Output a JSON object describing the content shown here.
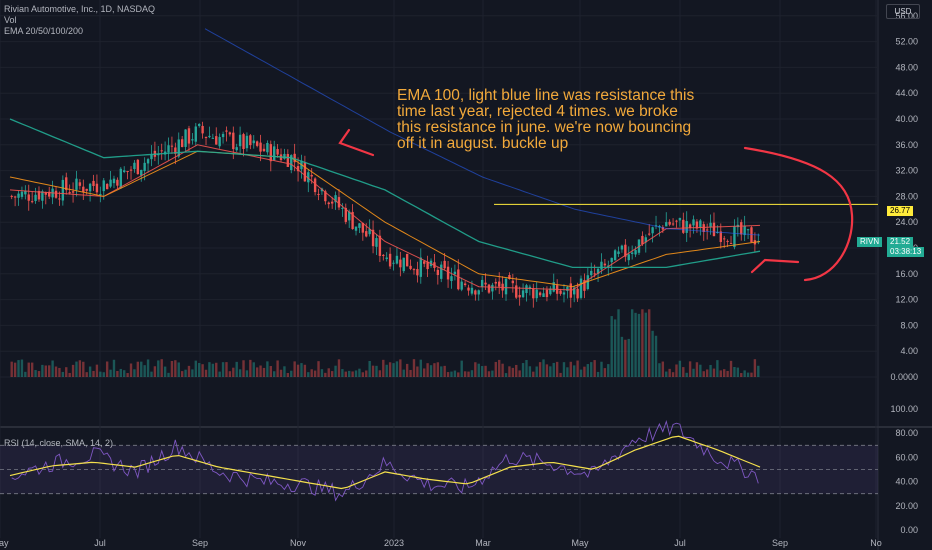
{
  "header": {
    "title": "Rivian Automotive, Inc., 1D, NASDAQ",
    "vol_label": "Vol",
    "ema_label": "EMA 20/50/100/200",
    "currency": "USD"
  },
  "annotation": {
    "text": "EMA 100, light blue line was resistance this time last year, rejected 4 times. we broke this resistance in june. we're now bouncing off it in august. buckle up"
  },
  "tags": {
    "ticker": "RIVN",
    "last_price": "21.52",
    "countdown": "03:38:13",
    "line_price": "26.77"
  },
  "rsi_label": "RSI (14, close, SMA, 14, 2)",
  "colors": {
    "background": "#131722",
    "up": "#26a69a",
    "down": "#ef5350",
    "ema20": "#ef5350",
    "ema50": "#f7931a",
    "ema100": "#22ab94",
    "ema200": "#2962ff",
    "hline": "#ffeb3b",
    "annotation": "#f2a93b",
    "rsi": "#7e57c2",
    "rsi_ma": "#f4e04d"
  },
  "chart_data": [
    {
      "type": "line",
      "title": "Rivian Automotive, Inc., 1D, NASDAQ",
      "x_ticks": [
        "May",
        "Jul",
        "Sep",
        "Nov",
        "2023",
        "Mar",
        "May",
        "Jul",
        "Sep",
        "No"
      ],
      "y_ticks": [
        "56.00",
        "52.00",
        "48.00",
        "44.00",
        "40.00",
        "36.00",
        "32.00",
        "28.00",
        "24.00",
        "20.00",
        "16.00",
        "12.00",
        "8.00",
        "4.00",
        "0.0000"
      ],
      "ylim": [
        -2,
        58
      ],
      "series": [
        {
          "name": "Close",
          "x": [
            "May",
            "Jul",
            "Sep",
            "Nov",
            "2023",
            "Mar",
            "May",
            "Jul",
            "Aug"
          ],
          "values": [
            28,
            30,
            38,
            34,
            19,
            14,
            13,
            24,
            21.52
          ]
        },
        {
          "name": "EMA 20",
          "x": [
            "May",
            "Jul",
            "Sep",
            "Nov",
            "2023",
            "Mar",
            "May",
            "Jul",
            "Aug"
          ],
          "values": [
            29,
            28,
            36,
            33,
            21,
            14,
            13.5,
            23,
            23.5
          ]
        },
        {
          "name": "EMA 50",
          "x": [
            "May",
            "Jul",
            "Sep",
            "Nov",
            "2023",
            "Mar",
            "May",
            "Jul",
            "Aug"
          ],
          "values": [
            31,
            28,
            35,
            34,
            24,
            16,
            14,
            19,
            21
          ]
        },
        {
          "name": "EMA 100",
          "x": [
            "May",
            "Jul",
            "Sep",
            "Nov",
            "2023",
            "Mar",
            "May",
            "Jul",
            "Aug"
          ],
          "values": [
            40,
            34,
            35,
            34,
            29,
            21,
            17,
            17,
            19.5
          ]
        },
        {
          "name": "EMA 200",
          "x": [
            "Sep",
            "Nov",
            "2023",
            "Mar",
            "May",
            "Jul",
            "Aug"
          ],
          "values": [
            54,
            46,
            38,
            31,
            26,
            23,
            22
          ]
        }
      ],
      "reference_line": 26.77,
      "volume_peak": 10.5
    },
    {
      "type": "line",
      "title": "RSI (14, close, SMA, 14, 2)",
      "y_ticks": [
        "100.00",
        "80.00",
        "60.00",
        "40.00",
        "20.00",
        "0.00"
      ],
      "ylim": [
        0,
        100
      ],
      "band": [
        30,
        70
      ],
      "series": [
        {
          "name": "RSI",
          "values": [
            45,
            55,
            62,
            48,
            70,
            48,
            40,
            38,
            30,
            55,
            38,
            35,
            60,
            55,
            45,
            75,
            85,
            60,
            45
          ]
        },
        {
          "name": "SMA",
          "values": [
            45,
            53,
            56,
            52,
            62,
            52,
            46,
            40,
            34,
            48,
            42,
            38,
            52,
            56,
            50,
            66,
            78,
            66,
            52
          ]
        }
      ]
    }
  ]
}
